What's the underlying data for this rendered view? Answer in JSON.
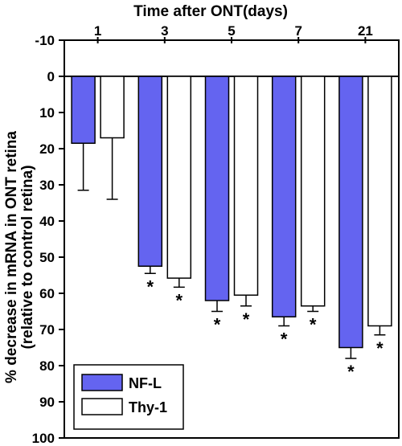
{
  "chart_data": {
    "type": "bar",
    "title": "Time after ONT(days)",
    "ylabel_line1": "% decrease in mRNA in ONT retina",
    "ylabel_line2": "(relative to control retina)",
    "categories": [
      "1",
      "3",
      "5",
      "7",
      "21"
    ],
    "series": [
      {
        "name": "NF-L",
        "color": "#6464f0",
        "values": [
          18.5,
          52.5,
          62,
          66.5,
          75
        ],
        "errors": [
          13,
          2,
          3,
          2.5,
          3
        ],
        "significant": [
          false,
          true,
          true,
          true,
          true
        ]
      },
      {
        "name": "Thy-1",
        "color": "#ffffff",
        "values": [
          17,
          55.8,
          60.5,
          63.5,
          69
        ],
        "errors": [
          17,
          2.5,
          3,
          1.5,
          2.5
        ],
        "significant": [
          false,
          true,
          true,
          true,
          true
        ]
      }
    ],
    "ylim": [
      -10,
      100
    ],
    "yticks": [
      -10,
      0,
      10,
      20,
      30,
      40,
      50,
      60,
      70,
      80,
      90,
      100
    ],
    "y_inverted": true,
    "significance_marker": "*",
    "legend_position": "bottom-left",
    "grid": false
  }
}
